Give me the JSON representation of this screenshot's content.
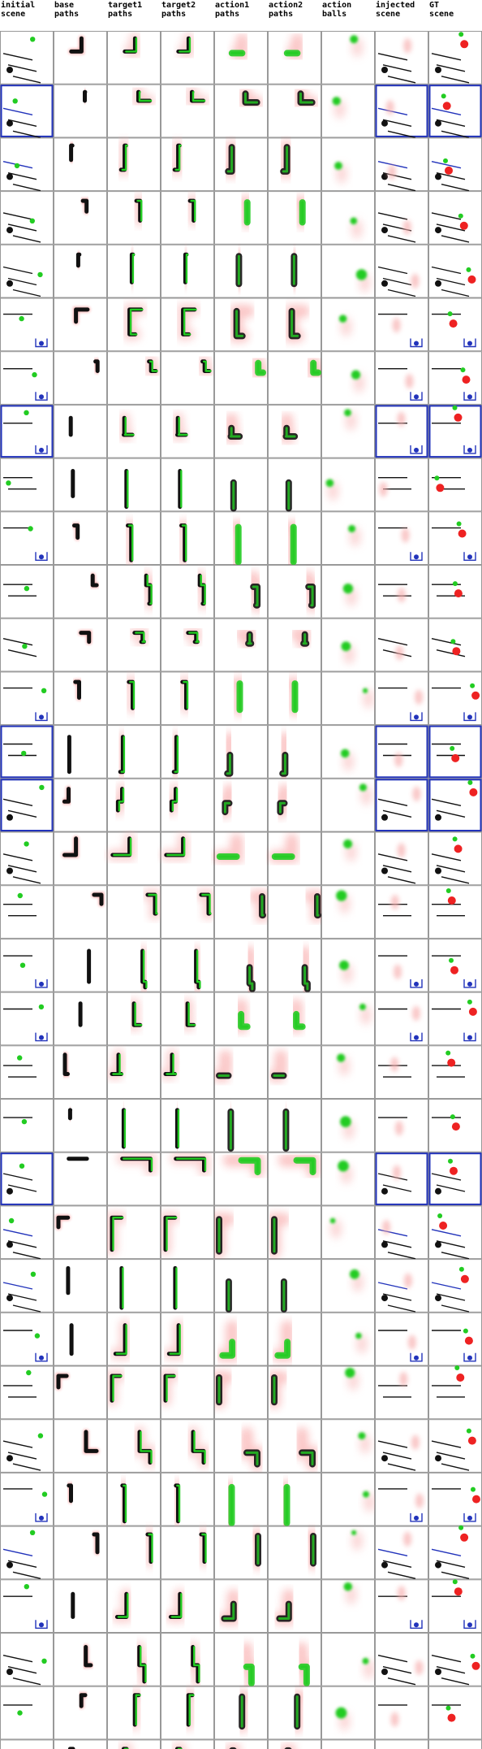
{
  "columns": [
    {
      "label": "initial\nscene"
    },
    {
      "label": "base\npaths"
    },
    {
      "label": "target1\npaths"
    },
    {
      "label": "target2\npaths"
    },
    {
      "label": "action1\npaths"
    },
    {
      "label": "action2\npaths"
    },
    {
      "label": "action\nballs"
    },
    {
      "label": "injected\nscene"
    },
    {
      "label": "GT\nscene"
    }
  ],
  "row_count": 33,
  "colors": {
    "green": "#22cc22",
    "red": "#ee2222",
    "red_fade": "#f7b0b0",
    "blue": "#2233bb",
    "black": "#111111",
    "grid_line": "#999999"
  }
}
